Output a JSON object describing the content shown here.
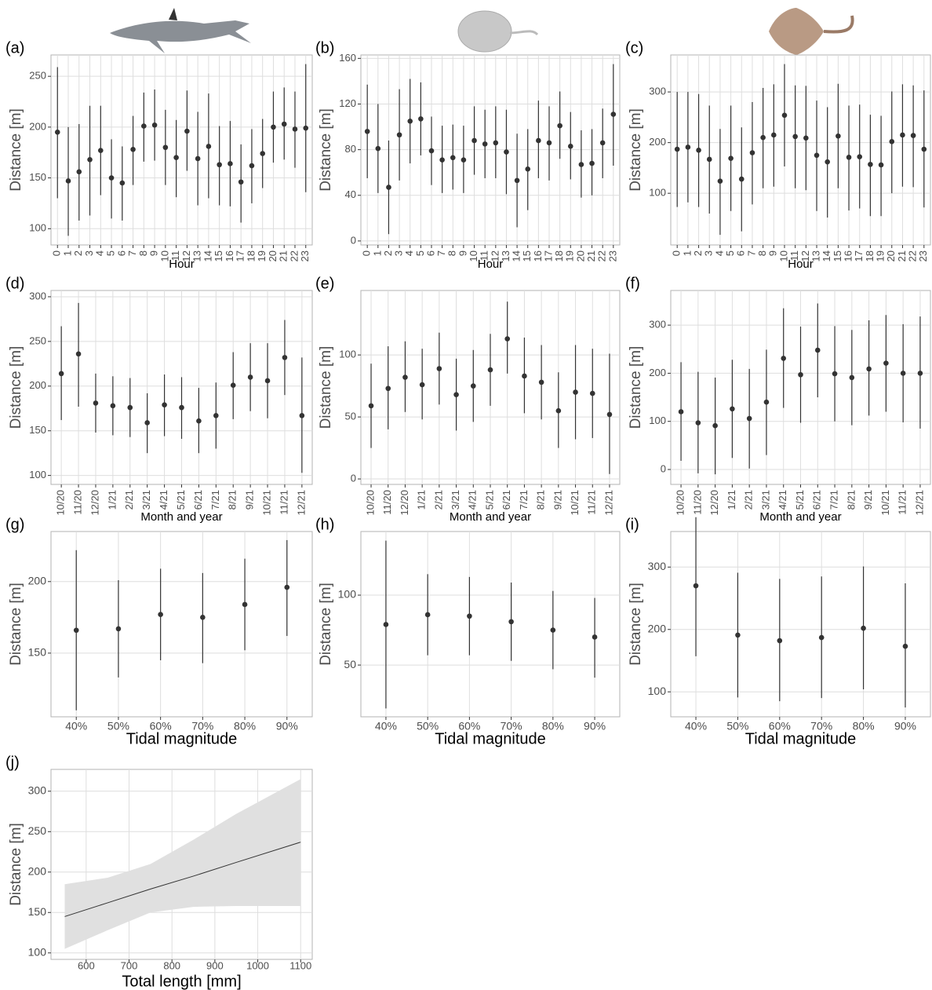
{
  "chart_data": [
    {
      "type": "errorbar",
      "panel_label": "(a)",
      "x_label": "Hour",
      "y_label": "Distance [m]",
      "categories": [
        "0",
        "1",
        "2",
        "3",
        "4",
        "5",
        "6",
        "7",
        "8",
        "9",
        "10",
        "11",
        "12",
        "13",
        "14",
        "15",
        "16",
        "17",
        "18",
        "19",
        "20",
        "21",
        "22",
        "23"
      ],
      "values": [
        195,
        147,
        156,
        168,
        177,
        150,
        145,
        178,
        201,
        202,
        180,
        170,
        196,
        169,
        181,
        163,
        164,
        146,
        162,
        174,
        200,
        203,
        198,
        199
      ],
      "lower": [
        130,
        93,
        108,
        113,
        133,
        110,
        108,
        143,
        166,
        167,
        143,
        131,
        157,
        123,
        130,
        123,
        122,
        106,
        125,
        140,
        165,
        168,
        160,
        136
      ],
      "upper": [
        259,
        200,
        203,
        221,
        221,
        188,
        181,
        211,
        234,
        237,
        217,
        207,
        236,
        215,
        233,
        201,
        206,
        183,
        198,
        208,
        235,
        239,
        235,
        262
      ],
      "ylim": [
        84,
        271
      ],
      "yticks": [
        100,
        150,
        200,
        250
      ],
      "grid": true,
      "color": "#333333"
    },
    {
      "type": "errorbar",
      "panel_label": "(b)",
      "x_label": "Hour",
      "y_label": "Distance [m]",
      "categories": [
        "0",
        "1",
        "2",
        "3",
        "4",
        "5",
        "6",
        "7",
        "8",
        "9",
        "10",
        "11",
        "12",
        "13",
        "14",
        "15",
        "16",
        "17",
        "18",
        "19",
        "20",
        "21",
        "22",
        "23"
      ],
      "values": [
        96,
        81,
        47,
        93,
        105,
        107,
        79,
        71,
        73,
        71,
        88,
        85,
        86,
        78,
        53,
        63,
        88,
        86,
        101,
        83,
        67,
        68,
        86,
        111
      ],
      "lower": [
        55,
        42,
        6,
        53,
        68,
        75,
        49,
        42,
        45,
        42,
        58,
        55,
        55,
        41,
        12,
        27,
        55,
        53,
        72,
        54,
        38,
        40,
        55,
        66
      ],
      "upper": [
        137,
        120,
        88,
        133,
        142,
        139,
        109,
        101,
        102,
        101,
        118,
        115,
        118,
        115,
        94,
        98,
        123,
        118,
        131,
        113,
        97,
        98,
        116,
        155
      ],
      "ylim": [
        -3.5,
        163
      ],
      "yticks": [
        0,
        40,
        80,
        120,
        160
      ],
      "grid": true,
      "color": "#333333"
    },
    {
      "type": "errorbar",
      "panel_label": "(c)",
      "x_label": "Hour",
      "y_label": "Distance [m]",
      "categories": [
        "0",
        "1",
        "2",
        "3",
        "4",
        "5",
        "6",
        "7",
        "8",
        "9",
        "10",
        "11",
        "12",
        "13",
        "14",
        "15",
        "16",
        "17",
        "18",
        "19",
        "20",
        "21",
        "22",
        "23"
      ],
      "values": [
        187,
        191,
        185,
        167,
        124,
        169,
        128,
        180,
        210,
        215,
        254,
        212,
        209,
        175,
        162,
        213,
        171,
        172,
        157,
        156,
        202,
        215,
        214,
        187
      ],
      "lower": [
        73,
        82,
        73,
        60,
        18,
        65,
        25,
        78,
        110,
        113,
        153,
        110,
        106,
        65,
        52,
        110,
        66,
        70,
        55,
        55,
        100,
        113,
        112,
        72
      ],
      "upper": [
        300,
        300,
        296,
        273,
        227,
        273,
        230,
        280,
        308,
        315,
        355,
        313,
        312,
        283,
        270,
        316,
        273,
        275,
        255,
        253,
        301,
        315,
        313,
        303
      ],
      "ylim": [
        -2,
        373
      ],
      "yticks": [
        100,
        200,
        300
      ],
      "grid": true,
      "color": "#333333"
    },
    {
      "type": "errorbar",
      "panel_label": "(d)",
      "x_label": "Month and year",
      "y_label": "Distance [m]",
      "categories": [
        "10/20",
        "11/20",
        "12/20",
        "1/21",
        "2/21",
        "3/21",
        "4/21",
        "5/21",
        "6/21",
        "7/21",
        "8/21",
        "9/21",
        "10/21",
        "11/21",
        "12/21"
      ],
      "values": [
        214,
        236,
        181,
        178,
        176,
        159,
        179,
        176,
        161,
        167,
        201,
        210,
        206,
        232,
        167
      ],
      "lower": [
        162,
        177,
        148,
        145,
        143,
        125,
        144,
        141,
        125,
        130,
        163,
        172,
        164,
        190,
        103
      ],
      "upper": [
        267,
        293,
        214,
        211,
        209,
        192,
        213,
        210,
        198,
        204,
        238,
        248,
        248,
        274,
        232
      ],
      "ylim": [
        90,
        307
      ],
      "yticks": [
        100,
        150,
        200,
        250,
        300
      ],
      "grid": true,
      "color": "#333333"
    },
    {
      "type": "errorbar",
      "panel_label": "(e)",
      "x_label": "Month and year",
      "y_label": "Distance [m]",
      "categories": [
        "10/20",
        "11/20",
        "12/20",
        "1/21",
        "2/21",
        "3/21",
        "4/21",
        "5/21",
        "6/21",
        "7/21",
        "8/21",
        "9/21",
        "10/21",
        "11/21",
        "12/21"
      ],
      "values": [
        59,
        73,
        82,
        76,
        89,
        68,
        75,
        88,
        113,
        83,
        78,
        55,
        70,
        69,
        52
      ],
      "lower": [
        25,
        40,
        54,
        48,
        60,
        39,
        46,
        59,
        85,
        53,
        48,
        25,
        32,
        33,
        4
      ],
      "upper": [
        93,
        107,
        111,
        105,
        118,
        97,
        104,
        117,
        143,
        114,
        108,
        86,
        108,
        105,
        101
      ],
      "ylim": [
        -4.4,
        152
      ],
      "yticks": [
        0,
        50,
        100
      ],
      "grid": true,
      "color": "#333333"
    },
    {
      "type": "errorbar",
      "panel_label": "(f)",
      "x_label": "Month and year",
      "y_label": "Distance [m]",
      "categories": [
        "10/20",
        "11/20",
        "12/20",
        "1/21",
        "2/21",
        "3/21",
        "4/21",
        "5/21",
        "6/21",
        "7/21",
        "8/21",
        "9/21",
        "10/21",
        "11/21",
        "12/21"
      ],
      "values": [
        120,
        97,
        91,
        126,
        106,
        140,
        231,
        197,
        248,
        199,
        191,
        209,
        221,
        200,
        200
      ],
      "lower": [
        18,
        -8,
        -10,
        24,
        2,
        30,
        128,
        97,
        150,
        100,
        92,
        112,
        120,
        98,
        85
      ],
      "upper": [
        223,
        203,
        191,
        228,
        209,
        249,
        335,
        297,
        345,
        298,
        290,
        310,
        321,
        302,
        318
      ],
      "ylim": [
        -31,
        372
      ],
      "yticks": [
        0,
        100,
        200,
        300
      ],
      "grid": true,
      "color": "#333333"
    },
    {
      "type": "errorbar",
      "panel_label": "(g)",
      "x_label": "Tidal magnitude",
      "y_label": "Distance [m]",
      "categories": [
        "40%",
        "50%",
        "60%",
        "70%",
        "80%",
        "90%"
      ],
      "values": [
        166,
        167,
        177,
        175,
        184,
        196
      ],
      "lower": [
        110,
        133,
        145,
        143,
        152,
        162
      ],
      "upper": [
        222,
        201,
        209,
        206,
        216,
        229
      ],
      "ylim": [
        105.5,
        235
      ],
      "yticks": [
        150,
        200
      ],
      "grid": true,
      "color": "#333333"
    },
    {
      "type": "errorbar",
      "panel_label": "(h)",
      "x_label": "Tidal magnitude",
      "y_label": "Distance [m]",
      "categories": [
        "40%",
        "50%",
        "60%",
        "70%",
        "80%",
        "90%"
      ],
      "values": [
        79,
        86,
        85,
        81,
        75,
        70
      ],
      "lower": [
        19,
        57,
        57,
        53,
        47,
        41
      ],
      "upper": [
        139,
        115,
        113,
        109,
        103,
        98
      ],
      "ylim": [
        13,
        145.5
      ],
      "yticks": [
        50,
        100
      ],
      "grid": true,
      "color": "#333333"
    },
    {
      "type": "errorbar",
      "panel_label": "(i)",
      "x_label": "Tidal magnitude",
      "y_label": "Distance [m]",
      "categories": [
        "40%",
        "50%",
        "60%",
        "70%",
        "80%",
        "90%"
      ],
      "values": [
        270,
        191,
        182,
        187,
        202,
        173
      ],
      "lower": [
        157,
        91,
        85,
        90,
        104,
        75
      ],
      "upper": [
        380,
        291,
        281,
        285,
        301,
        274
      ],
      "ylim": [
        60,
        357
      ],
      "yticks": [
        100,
        200,
        300
      ],
      "grid": true,
      "color": "#333333"
    },
    {
      "type": "line",
      "panel_label": "(j)",
      "x_label": "Total length [mm]",
      "y_label": "Distance [m]",
      "x": [
        550,
        650,
        750,
        850,
        950,
        1100
      ],
      "values": [
        145,
        162,
        179,
        195,
        212,
        237
      ],
      "lower": [
        105,
        128,
        150,
        157,
        158,
        158
      ],
      "upper": [
        185,
        193,
        210,
        240,
        272,
        315
      ],
      "xlim": [
        518,
        1127
      ],
      "xticks": [
        600,
        700,
        800,
        900,
        1000,
        1100
      ],
      "ylim": [
        92,
        327
      ],
      "yticks": [
        100,
        150,
        200,
        250,
        300
      ],
      "grid": true,
      "color": "#333333",
      "band_color": "#e0e0e0"
    }
  ]
}
